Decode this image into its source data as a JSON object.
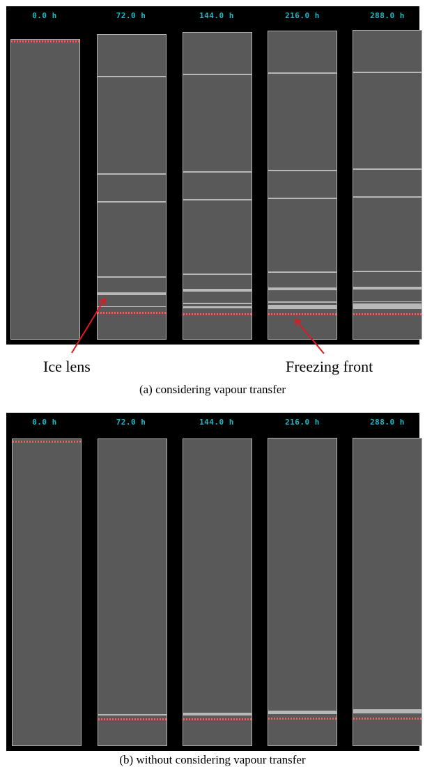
{
  "panel_a": {
    "time_labels": [
      "0.0 h",
      "72.0 h",
      "144.0 h",
      "216.0 h",
      "288.0 h"
    ],
    "caption": "(a) considering vapour transfer",
    "annotation_ice_lens": "Ice lens",
    "annotation_freezing_front": "Freezing front"
  },
  "panel_b": {
    "time_labels": [
      "0.0 h",
      "72.0 h",
      "144.0 h",
      "216.0 h",
      "288.0 h"
    ],
    "caption": "(b) without considering vapour transfer"
  },
  "colors": {
    "background": "#000000",
    "column_fill": "#595959",
    "ice_lens": "#b8b8b8",
    "freezing_front": "#ff5a5a",
    "time_label": "#19b9c3",
    "arrow": "#e0191e"
  }
}
